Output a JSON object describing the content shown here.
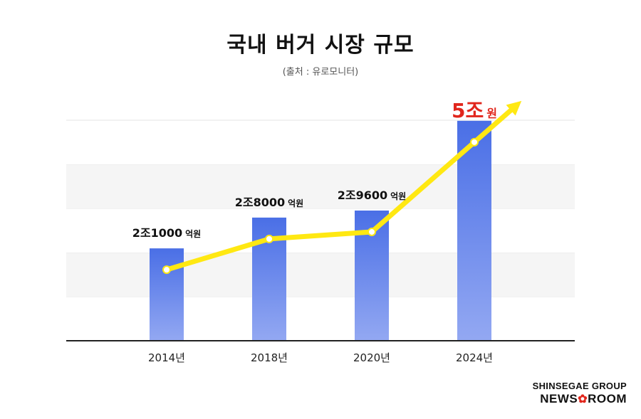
{
  "title": "국내 버거 시장 규모",
  "subtitle": "(출처 : 유로모니터)",
  "logo": {
    "line1": "SHINSEGAE GROUP",
    "news": "NEWS",
    "room": "ROOM"
  },
  "chart_data": {
    "type": "bar",
    "categories": [
      "2014년",
      "2018년",
      "2020년",
      "2024년"
    ],
    "values": [
      21000,
      28000,
      29600,
      50000
    ],
    "unit": "억원",
    "data_labels": [
      {
        "num": "2조1000",
        "unit": "억원"
      },
      {
        "num": "2조8000",
        "unit": "억원"
      },
      {
        "num": "2조9600",
        "unit": "억원"
      },
      {
        "num": "5조",
        "unit": "원"
      }
    ],
    "ylim": [
      0,
      60000
    ],
    "grid": true,
    "trend_line": true,
    "colors": {
      "bar_top": "#4a6fe6",
      "bar_bottom": "#93a8f2",
      "trend": "#ffe812",
      "highlight": "#e1261c",
      "band": "#f5f5f5"
    }
  }
}
